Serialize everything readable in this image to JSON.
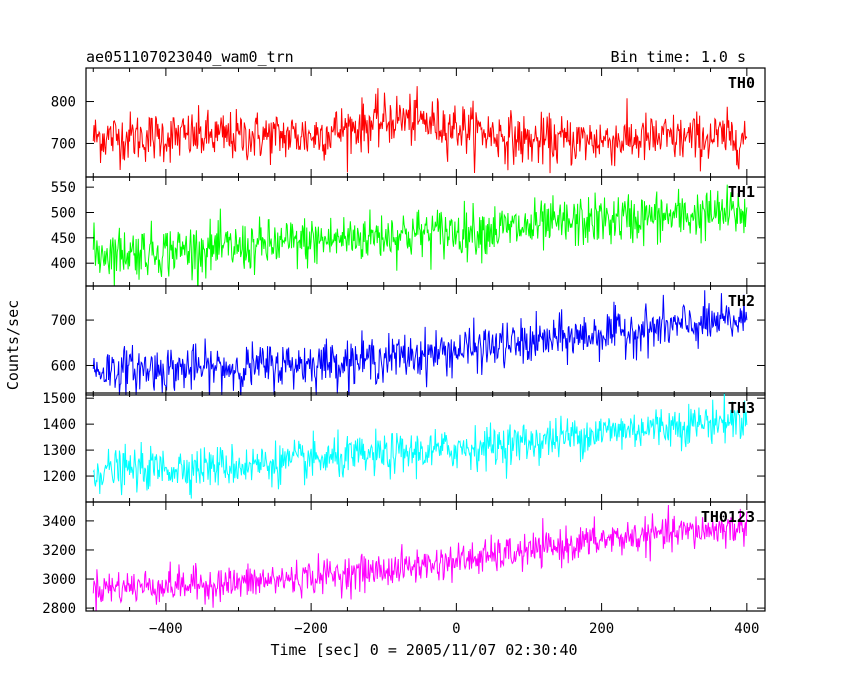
{
  "chart_data": {
    "type": "line",
    "title": "ae051107023040_wam0_trn",
    "subtitle": "Bin time: 1.0 s",
    "xlabel": "Time [sec] 0 = 2005/11/07 02:30:40",
    "ylabel": "Counts/sec",
    "xlim": [
      -510,
      425
    ],
    "x_ticks": [
      -400,
      -200,
      0,
      200,
      400
    ],
    "x_tick_labels": [
      "−400",
      "−200",
      "0",
      "200",
      "400"
    ],
    "x_range": [
      -500,
      400
    ],
    "bin_time": 1.0,
    "panels": [
      {
        "name": "TH0",
        "color": "#ff0000",
        "ylim": [
          620,
          880
        ],
        "yticks": [
          700,
          800
        ],
        "trend": [
          [
            -500,
            715
          ],
          [
            -200,
            718
          ],
          [
            -80,
            760
          ],
          [
            0,
            740
          ],
          [
            100,
            705
          ],
          [
            400,
            715
          ]
        ],
        "noise_std": 30
      },
      {
        "name": "TH1",
        "color": "#00ff00",
        "ylim": [
          355,
          570
        ],
        "yticks": [
          400,
          450,
          500,
          550
        ],
        "trend": [
          [
            -500,
            420
          ],
          [
            -300,
            430
          ],
          [
            -100,
            455
          ],
          [
            100,
            470
          ],
          [
            200,
            485
          ],
          [
            400,
            500
          ]
        ],
        "noise_std": 25
      },
      {
        "name": "TH2",
        "color": "#0000ff",
        "ylim": [
          535,
          775
        ],
        "yticks": [
          600,
          700
        ],
        "trend": [
          [
            -500,
            590
          ],
          [
            -300,
            595
          ],
          [
            -100,
            615
          ],
          [
            100,
            650
          ],
          [
            200,
            670
          ],
          [
            400,
            700
          ]
        ],
        "noise_std": 25
      },
      {
        "name": "TH3",
        "color": "#00ffff",
        "ylim": [
          1100,
          1520
        ],
        "yticks": [
          1200,
          1300,
          1400,
          1500
        ],
        "trend": [
          [
            -500,
            1220
          ],
          [
            -300,
            1240
          ],
          [
            -100,
            1280
          ],
          [
            100,
            1330
          ],
          [
            200,
            1370
          ],
          [
            400,
            1420
          ]
        ],
        "noise_std": 40
      },
      {
        "name": "TH0123",
        "color": "#ff00ff",
        "ylim": [
          2780,
          3530
        ],
        "yticks": [
          2800,
          3000,
          3200,
          3400
        ],
        "trend": [
          [
            -500,
            2940
          ],
          [
            -300,
            2970
          ],
          [
            -100,
            3060
          ],
          [
            100,
            3190
          ],
          [
            200,
            3270
          ],
          [
            400,
            3360
          ]
        ],
        "noise_std": 60
      }
    ]
  }
}
